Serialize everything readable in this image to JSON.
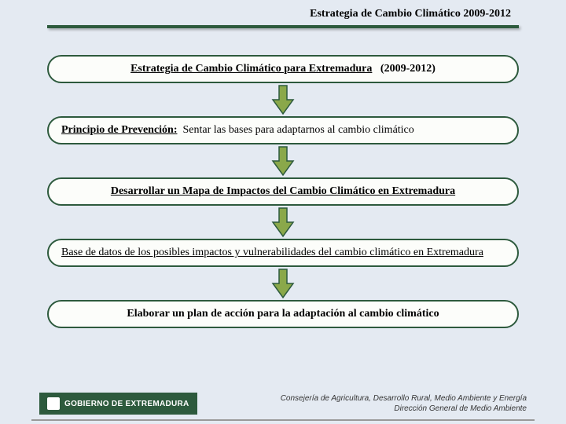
{
  "header": {
    "title": "Estrategia de Cambio Climático 2009-2012",
    "line_color": "#2d5a3d"
  },
  "flowchart": {
    "type": "flowchart",
    "background_color": "#e4eaf2",
    "box_border_color": "#2d5a3d",
    "box_bg_color": "#fcfdfa",
    "box_border_radius": 22,
    "arrow_fill": "#8aa84a",
    "arrow_stroke": "#2d5a3d",
    "nodes": [
      {
        "id": "n1",
        "html": "<b><span class='underline'>Estrategia de Cambio Climático para Extremadura</span></b> &nbsp; <b>(2009-2012)</b>",
        "centered": true
      },
      {
        "id": "n2",
        "html": "<b><span class='underline'>Principio de Prevención:</span></b> &nbsp;Sentar las bases para adaptarnos al cambio climático",
        "centered": false
      },
      {
        "id": "n3",
        "html": "<b><span class='underline'>Desarrollar un Mapa de Impactos del Cambio Climático en Extremadura</span></b>",
        "centered": true
      },
      {
        "id": "n4",
        "html": "<span class='underline'>Base de datos de los posibles impactos y vulnerabilidades del cambio climático en Extremadura</span>",
        "centered": false
      },
      {
        "id": "n5",
        "html": "<b>Elaborar un plan de acción para la adaptación al cambio climático</b>",
        "centered": true
      }
    ]
  },
  "footer": {
    "gov_text": "GOBIERNO DE EXTREMADURA",
    "consejeria_line1": "Consejería de Agricultura, Desarrollo Rural, Medio Ambiente y Energía",
    "consejeria_line2": "Dirección General de Medio Ambiente"
  }
}
